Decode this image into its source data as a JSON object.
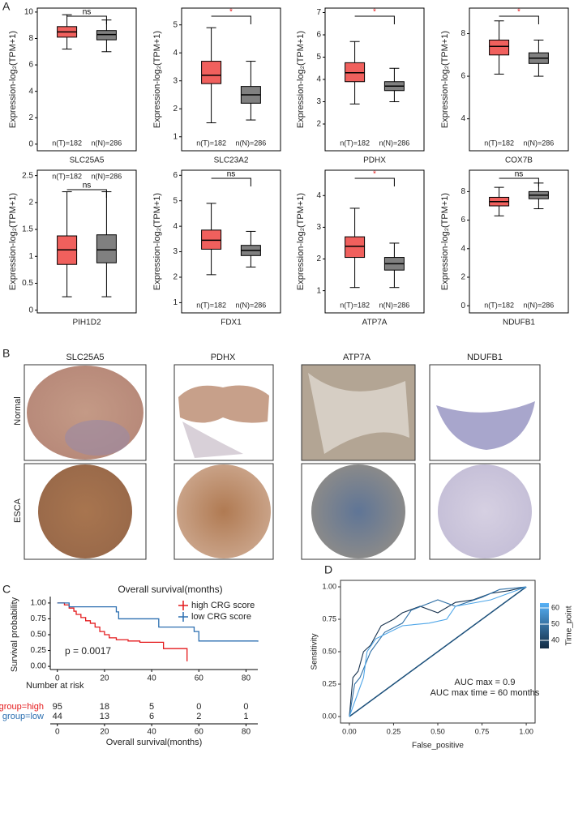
{
  "panels": [
    "A",
    "B",
    "C",
    "D"
  ],
  "tissue_panel": {
    "genes": [
      "SLC25A5",
      "PDHX",
      "ATP7A",
      "NDUFB1"
    ],
    "rows": [
      "Normal",
      "ESCA"
    ]
  },
  "chart_data": [
    {
      "type": "box",
      "x_label": "SLC25A5",
      "y_label": "Expression-log₂(TPM+1)",
      "ylim": [
        -0.5,
        10.3
      ],
      "yticks": [
        0,
        2,
        4,
        6,
        8,
        10
      ],
      "significance": "ns",
      "significance_color": "#000000",
      "n_labels": [
        "n(T)=182",
        "n(N)=286"
      ],
      "boxes": [
        {
          "color": "#f0605d",
          "whislo": 7.2,
          "q1": 8.1,
          "med": 8.5,
          "q3": 8.9,
          "whishi": 9.8
        },
        {
          "color": "#808080",
          "whislo": 7.0,
          "q1": 7.9,
          "med": 8.3,
          "q3": 8.6,
          "whishi": 9.4
        }
      ]
    },
    {
      "type": "box",
      "x_label": "SLC23A2",
      "y_label": "Expression-log₂(TPM+1)",
      "ylim": [
        0.5,
        5.6
      ],
      "yticks": [
        1,
        2,
        3,
        4,
        5
      ],
      "significance": "*",
      "significance_color": "#e41a1c",
      "n_labels": [
        "n(T)=182",
        "n(N)=286"
      ],
      "boxes": [
        {
          "color": "#f0605d",
          "whislo": 1.5,
          "q1": 2.9,
          "med": 3.2,
          "q3": 3.7,
          "whishi": 4.9
        },
        {
          "color": "#808080",
          "whislo": 1.6,
          "q1": 2.2,
          "med": 2.5,
          "q3": 2.8,
          "whishi": 3.7
        }
      ]
    },
    {
      "type": "box",
      "x_label": "PDHX",
      "y_label": "Expression-log₂(TPM+1)",
      "ylim": [
        0.8,
        7.2
      ],
      "yticks": [
        2,
        3,
        4,
        5,
        6,
        7
      ],
      "significance": "*",
      "significance_color": "#e41a1c",
      "n_labels": [
        "n(T)=182",
        "n(N)=286"
      ],
      "boxes": [
        {
          "color": "#f0605d",
          "whislo": 2.9,
          "q1": 3.9,
          "med": 4.3,
          "q3": 4.75,
          "whishi": 5.7
        },
        {
          "color": "#808080",
          "whislo": 3.0,
          "q1": 3.5,
          "med": 3.7,
          "q3": 3.9,
          "whishi": 4.5
        }
      ]
    },
    {
      "type": "box",
      "x_label": "COX7B",
      "y_label": "Expression-log₂(TPM+1)",
      "ylim": [
        2.5,
        9.2
      ],
      "yticks": [
        4,
        6,
        8
      ],
      "significance": "*",
      "significance_color": "#e41a1c",
      "n_labels": [
        "n(T)=182",
        "n(N)=286"
      ],
      "boxes": [
        {
          "color": "#f0605d",
          "whislo": 6.1,
          "q1": 7.0,
          "med": 7.4,
          "q3": 7.7,
          "whishi": 8.6
        },
        {
          "color": "#808080",
          "whislo": 6.0,
          "q1": 6.6,
          "med": 6.85,
          "q3": 7.1,
          "whishi": 7.7
        }
      ]
    },
    {
      "type": "box",
      "x_label": "PIH1D2",
      "y_label": "Expression-log₂(TPM+1)",
      "ylim": [
        -0.05,
        2.6
      ],
      "yticks": [
        0,
        0.5,
        1,
        1.5,
        2,
        2.5
      ],
      "significance": "ns",
      "significance_color": "#000000",
      "n_labels": [
        "n(T)=182",
        "n(N)=286"
      ],
      "n_label_position": "top",
      "boxes": [
        {
          "color": "#f0605d",
          "whislo": 0.25,
          "q1": 0.85,
          "med": 1.12,
          "q3": 1.38,
          "whishi": 2.2
        },
        {
          "color": "#808080",
          "whislo": 0.25,
          "q1": 0.88,
          "med": 1.12,
          "q3": 1.4,
          "whishi": 2.2
        }
      ]
    },
    {
      "type": "box",
      "x_label": "FDX1",
      "y_label": "Expression-log₂(TPM+1)",
      "ylim": [
        0.6,
        6.2
      ],
      "yticks": [
        1,
        2,
        3,
        4,
        5,
        6
      ],
      "significance": "ns",
      "significance_color": "#000000",
      "n_labels": [
        "n(T)=182",
        "n(N)=286"
      ],
      "boxes": [
        {
          "color": "#f0605d",
          "whislo": 2.1,
          "q1": 3.1,
          "med": 3.45,
          "q3": 3.85,
          "whishi": 4.9
        },
        {
          "color": "#808080",
          "whislo": 2.4,
          "q1": 2.85,
          "med": 3.05,
          "q3": 3.25,
          "whishi": 3.8
        }
      ]
    },
    {
      "type": "box",
      "x_label": "ATP7A",
      "y_label": "Expression-log₂(TPM+1)",
      "ylim": [
        0.3,
        4.8
      ],
      "yticks": [
        1,
        2,
        3,
        4
      ],
      "significance": "*",
      "significance_color": "#e41a1c",
      "n_labels": [
        "n(T)=182",
        "n(N)=286"
      ],
      "boxes": [
        {
          "color": "#f0605d",
          "whislo": 1.1,
          "q1": 2.05,
          "med": 2.4,
          "q3": 2.7,
          "whishi": 3.6
        },
        {
          "color": "#808080",
          "whislo": 1.1,
          "q1": 1.65,
          "med": 1.85,
          "q3": 2.05,
          "whishi": 2.5
        }
      ]
    },
    {
      "type": "box",
      "x_label": "NDUFB1",
      "y_label": "Expression-log₂(TPM+1)",
      "ylim": [
        -0.5,
        9.5
      ],
      "yticks": [
        0,
        2,
        4,
        6,
        8
      ],
      "significance": "ns",
      "significance_color": "#000000",
      "n_labels": [
        "n(T)=182",
        "n(N)=286"
      ],
      "boxes": [
        {
          "color": "#f0605d",
          "whislo": 6.3,
          "q1": 7.0,
          "med": 7.3,
          "q3": 7.6,
          "whishi": 8.3
        },
        {
          "color": "#808080",
          "whislo": 6.8,
          "q1": 7.5,
          "med": 7.75,
          "q3": 8.0,
          "whishi": 8.6
        }
      ]
    },
    {
      "type": "step",
      "title": "Overall survival(months)",
      "x_label": "Overall survival(months)",
      "y_label": "Survival probability",
      "xlim": [
        -3,
        85
      ],
      "xticks": [
        0,
        20,
        40,
        60,
        80
      ],
      "ylim": [
        -0.05,
        1.05
      ],
      "yticks": [
        {
          "value": 0,
          "label": "0.00"
        },
        {
          "value": 0.25,
          "label": "0.25"
        },
        {
          "value": 0.5,
          "label": "0.50"
        },
        {
          "value": 0.75,
          "label": "0.75"
        },
        {
          "value": 1,
          "label": "1.00"
        }
      ],
      "annotation": "p = 0.0017",
      "legend": "top-right",
      "series": [
        {
          "name": "high CRG score",
          "color": "#e41a1c",
          "x": [
            0,
            3,
            5,
            7,
            8,
            10,
            12,
            14,
            16,
            18,
            20,
            22,
            25,
            30,
            35,
            45,
            55
          ],
          "y": [
            1,
            0.97,
            0.92,
            0.87,
            0.82,
            0.77,
            0.72,
            0.68,
            0.62,
            0.55,
            0.5,
            0.45,
            0.42,
            0.4,
            0.38,
            0.28,
            0.08
          ]
        },
        {
          "name": "low CRG score",
          "color": "#2c6fb0",
          "x": [
            0,
            5,
            25,
            26,
            43,
            58,
            60,
            85
          ],
          "y": [
            1,
            0.94,
            0.86,
            0.75,
            0.62,
            0.55,
            0.4,
            0.39
          ]
        }
      ],
      "risk_table": {
        "title": "Number at risk",
        "x_label": "Overall survival(months)",
        "times": [
          0,
          20,
          40,
          60,
          80
        ],
        "groups": [
          {
            "label": "group=high",
            "color": "#e41a1c",
            "counts": [
              95,
              18,
              5,
              0,
              0
            ]
          },
          {
            "label": "group=low",
            "color": "#2c6fb0",
            "counts": [
              44,
              13,
              6,
              2,
              1
            ]
          }
        ]
      }
    },
    {
      "type": "line",
      "x_label": "False_positive",
      "y_label": "Sensitivity",
      "xlim": [
        -0.05,
        1.05
      ],
      "ylim": [
        -0.05,
        1.05
      ],
      "xticks": [
        {
          "value": 0,
          "label": "0.00"
        },
        {
          "value": 0.25,
          "label": "0.25"
        },
        {
          "value": 0.5,
          "label": "0.50"
        },
        {
          "value": 0.75,
          "label": "0.75"
        },
        {
          "value": 1,
          "label": "1.00"
        }
      ],
      "yticks": [
        {
          "value": 0,
          "label": "0.00"
        },
        {
          "value": 0.25,
          "label": "0.25"
        },
        {
          "value": 0.5,
          "label": "0.50"
        },
        {
          "value": 0.75,
          "label": "0.75"
        },
        {
          "value": 1,
          "label": "1.00"
        }
      ],
      "annotations": [
        "AUC max = 0.9",
        "AUC max time = 60 months"
      ],
      "colorbar": {
        "title": "Time_point",
        "lim": [
          35,
          63
        ],
        "ticks": [
          40,
          50,
          60
        ],
        "colors": [
          "#132b43",
          "#56b1f7"
        ]
      },
      "series": [
        {
          "color": "#1b4f7a",
          "x": [
            0,
            1
          ],
          "y": [
            0,
            1
          ]
        },
        {
          "color": "#16314d",
          "x": [
            0,
            0.02,
            0.05,
            0.08,
            0.12,
            0.18,
            0.25,
            0.3,
            0.4,
            0.5,
            0.6,
            0.7,
            0.8,
            0.9,
            1
          ],
          "y": [
            0,
            0.3,
            0.35,
            0.5,
            0.55,
            0.7,
            0.75,
            0.8,
            0.85,
            0.8,
            0.88,
            0.9,
            0.95,
            0.97,
            1
          ]
        },
        {
          "color": "#2f6fa5",
          "x": [
            0,
            0.03,
            0.06,
            0.12,
            0.2,
            0.3,
            0.35,
            0.5,
            0.6,
            0.75,
            0.85,
            1
          ],
          "y": [
            0,
            0.25,
            0.3,
            0.5,
            0.65,
            0.72,
            0.82,
            0.9,
            0.85,
            0.92,
            0.98,
            1
          ]
        },
        {
          "color": "#4fa6e8",
          "x": [
            0,
            0.04,
            0.08,
            0.1,
            0.15,
            0.3,
            0.45,
            0.55,
            0.6,
            0.8,
            0.9,
            1
          ],
          "y": [
            0,
            0.15,
            0.3,
            0.5,
            0.6,
            0.7,
            0.72,
            0.75,
            0.85,
            0.9,
            0.95,
            1
          ]
        }
      ]
    }
  ]
}
